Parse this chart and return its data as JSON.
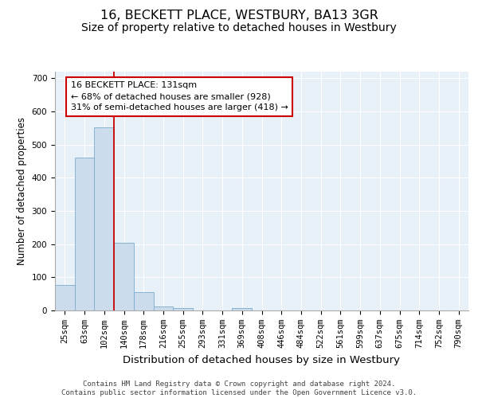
{
  "title": "16, BECKETT PLACE, WESTBURY, BA13 3GR",
  "subtitle": "Size of property relative to detached houses in Westbury",
  "xlabel": "Distribution of detached houses by size in Westbury",
  "ylabel": "Number of detached properties",
  "footer_line1": "Contains HM Land Registry data © Crown copyright and database right 2024.",
  "footer_line2": "Contains public sector information licensed under the Open Government Licence v3.0.",
  "annotation_line1": "16 BECKETT PLACE: 131sqm",
  "annotation_line2": "← 68% of detached houses are smaller (928)",
  "annotation_line3": "31% of semi-detached houses are larger (418) →",
  "bar_labels": [
    "25sqm",
    "63sqm",
    "102sqm",
    "140sqm",
    "178sqm",
    "216sqm",
    "255sqm",
    "293sqm",
    "331sqm",
    "369sqm",
    "408sqm",
    "446sqm",
    "484sqm",
    "522sqm",
    "561sqm",
    "599sqm",
    "637sqm",
    "675sqm",
    "714sqm",
    "752sqm",
    "790sqm"
  ],
  "bar_values": [
    78,
    462,
    553,
    203,
    55,
    13,
    7,
    0,
    0,
    7,
    0,
    0,
    0,
    0,
    0,
    0,
    0,
    0,
    0,
    0,
    0
  ],
  "bar_color": "#ccdcec",
  "bar_edge_color": "#7aaccf",
  "red_line_color": "#cc0000",
  "annotation_box_edge_color": "#cc0000",
  "ylim": [
    0,
    720
  ],
  "yticks": [
    0,
    100,
    200,
    300,
    400,
    500,
    600,
    700
  ],
  "plot_bg_color": "#e8f0f8",
  "grid_color": "#ffffff",
  "title_fontsize": 11.5,
  "subtitle_fontsize": 10,
  "xlabel_fontsize": 9.5,
  "ylabel_fontsize": 8.5,
  "tick_fontsize": 7.5,
  "annotation_fontsize": 8,
  "footer_fontsize": 6.5
}
